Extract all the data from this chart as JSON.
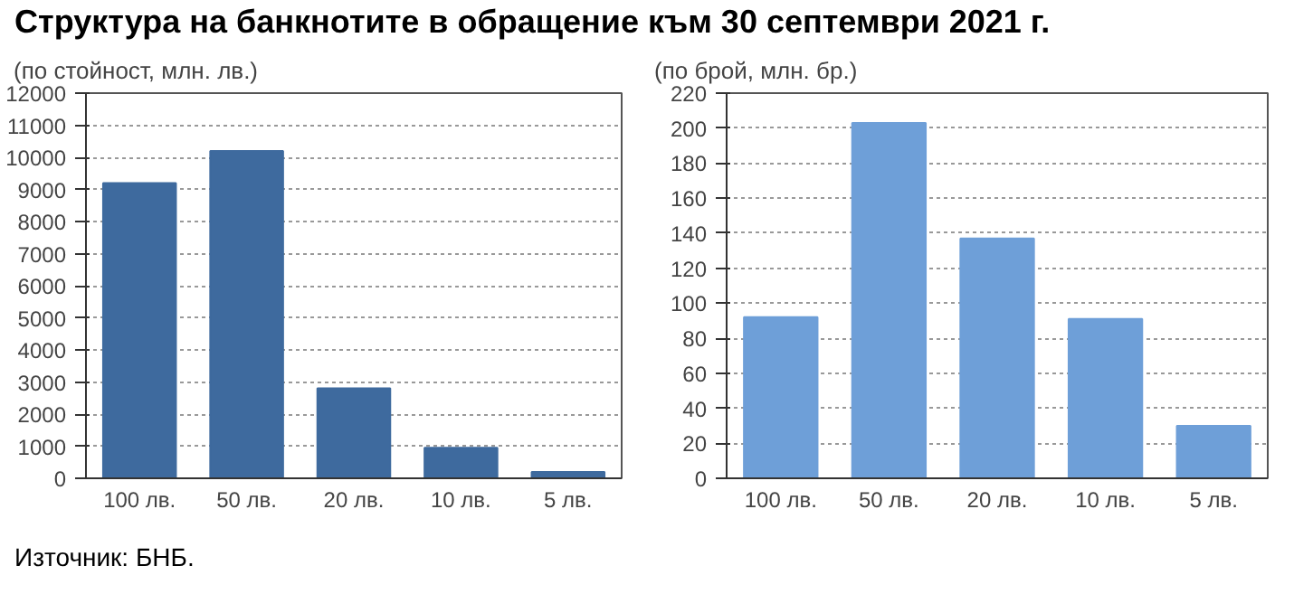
{
  "chart_data": [
    {
      "type": "bar",
      "title": "Структура на банкнотите в обращение към 30 септември 2021 г.",
      "subtitle": "(по стойност, млн. лв.)",
      "categories": [
        "100 лв.",
        "50 лв.",
        "20 лв.",
        "10 лв.",
        "5 лв."
      ],
      "values": [
        9200,
        10200,
        2800,
        950,
        200
      ],
      "color": "#3e6a9e",
      "ylim": [
        0,
        12000
      ],
      "yticks": [
        0,
        1000,
        2000,
        3000,
        4000,
        5000,
        6000,
        7000,
        8000,
        9000,
        10000,
        11000,
        12000
      ],
      "grid": "y",
      "annotations": [
        "Източник: БНБ."
      ]
    },
    {
      "type": "bar",
      "subtitle": "(по брой, млн. бр.)",
      "categories": [
        "100 лв.",
        "50 лв.",
        "20 лв.",
        "10 лв.",
        "5 лв."
      ],
      "values": [
        92,
        203,
        137,
        91,
        30
      ],
      "color": "#6e9fd8",
      "ylim": [
        0,
        220
      ],
      "yticks": [
        0,
        20,
        40,
        60,
        80,
        100,
        120,
        140,
        160,
        180,
        200,
        220
      ],
      "grid": "y"
    }
  ]
}
